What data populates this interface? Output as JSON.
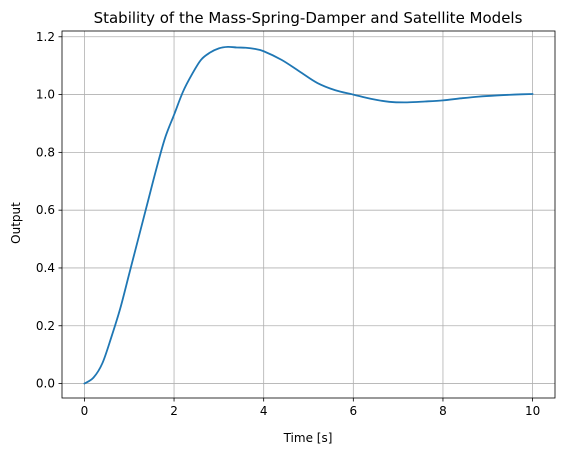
{
  "chart_data": {
    "type": "line",
    "title": "Stability of the Mass-Spring-Damper and Satellite Models",
    "xlabel": "Time [s]",
    "ylabel": "Output",
    "xlim": [
      -0.5,
      10.5
    ],
    "ylim": [
      -0.05,
      1.22
    ],
    "xticks": [
      0,
      2,
      4,
      6,
      8,
      10
    ],
    "xtick_labels": [
      "0",
      "2",
      "4",
      "6",
      "8",
      "10"
    ],
    "yticks": [
      0.0,
      0.2,
      0.4,
      0.6,
      0.8,
      1.0,
      1.2
    ],
    "ytick_labels": [
      "0.0",
      "0.2",
      "0.4",
      "0.6",
      "0.8",
      "1.0",
      "1.2"
    ],
    "grid": true,
    "legend": "none",
    "series": [
      {
        "color": "#1f77b4",
        "x": [
          0,
          0.2,
          0.4,
          0.6,
          0.8,
          1.0,
          1.2,
          1.4,
          1.6,
          1.8,
          2.0,
          2.2,
          2.4,
          2.6,
          2.8,
          3.0,
          3.2,
          3.4,
          3.6,
          3.8,
          4.0,
          4.4,
          4.8,
          5.2,
          5.6,
          6.0,
          6.4,
          6.8,
          7.2,
          7.6,
          8.0,
          8.4,
          8.8,
          9.2,
          9.6,
          10.0
        ],
        "y": [
          0.0,
          0.02,
          0.07,
          0.16,
          0.26,
          0.38,
          0.5,
          0.62,
          0.74,
          0.85,
          0.93,
          1.01,
          1.07,
          1.12,
          1.145,
          1.16,
          1.165,
          1.163,
          1.162,
          1.158,
          1.15,
          1.12,
          1.08,
          1.04,
          1.015,
          1.0,
          0.985,
          0.975,
          0.973,
          0.976,
          0.98,
          0.987,
          0.993,
          0.997,
          1.0,
          1.002
        ]
      }
    ]
  }
}
